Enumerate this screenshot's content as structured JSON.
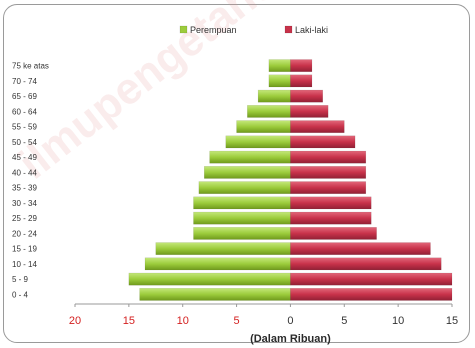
{
  "chart_data": {
    "type": "bar",
    "orientation": "horizontal-population-pyramid",
    "categories": [
      "75 ke atas",
      "70 - 74",
      "65 - 69",
      "60 - 64",
      "55 - 59",
      "50 - 54",
      "45 - 49",
      "40 - 44",
      "35 - 39",
      "30 - 34",
      "25 - 29",
      "20 - 24",
      "15 - 19",
      "10 - 14",
      "5 - 9",
      "0 - 4"
    ],
    "series": [
      {
        "name": "Perempuan",
        "side": "left",
        "color": "#9ccc3c",
        "values": [
          2,
          2,
          3,
          4,
          5,
          6,
          7.5,
          8,
          8.5,
          9,
          9,
          9,
          12.5,
          13.5,
          15,
          14
        ]
      },
      {
        "name": "Laki-laki",
        "side": "right",
        "color": "#c8324a",
        "values": [
          2,
          2,
          3,
          3.5,
          5,
          6,
          7,
          7,
          7,
          7.5,
          7.5,
          8,
          13,
          14,
          15,
          15
        ]
      }
    ],
    "x_ticks": [
      {
        "value": -20,
        "label": "20"
      },
      {
        "value": -15,
        "label": "15"
      },
      {
        "value": -10,
        "label": "10"
      },
      {
        "value": -5,
        "label": "5"
      },
      {
        "value": 0,
        "label": "0"
      },
      {
        "value": 5,
        "label": "5"
      },
      {
        "value": 10,
        "label": "10"
      },
      {
        "value": 15,
        "label": "15"
      }
    ],
    "xlim": [
      -20,
      15
    ],
    "xlabel": "(Dalam Ribuan)",
    "negative_tick_color": "#d42020",
    "positive_tick_color": "#333333",
    "legend_position": "top-center",
    "grid": false
  },
  "watermark": "ilmupengetahuan"
}
